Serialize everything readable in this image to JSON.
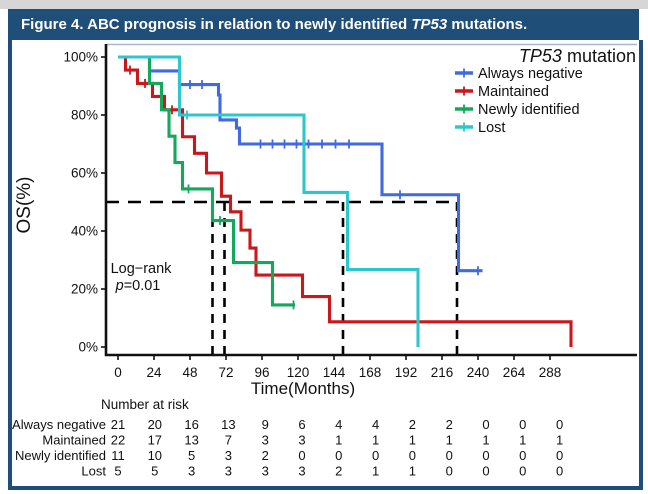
{
  "figure": {
    "title_prefix": "Figure 4. ABC prognosis in relation to newly identified ",
    "title_gene": "TP53",
    "title_suffix": " mutations.",
    "frame_color": "#1f4e79"
  },
  "chart_data": {
    "type": "line",
    "subtype": "kaplan-meier-step",
    "title": "",
    "xlabel": "Time(Months)",
    "ylabel": "OS(%)",
    "xlim": [
      0,
      346
    ],
    "ylim": [
      0,
      100
    ],
    "grid": false,
    "x_ticks": [
      0,
      24,
      48,
      72,
      96,
      120,
      144,
      168,
      192,
      216,
      240,
      264,
      288
    ],
    "y_tick_values": [
      0,
      20,
      40,
      60,
      80,
      100
    ],
    "y_tick_labels": [
      "0%",
      "20%",
      "40%",
      "60%",
      "80%",
      "100%"
    ],
    "legend": {
      "position": "top-right",
      "title_italic": "TP53",
      "title_rest": " mutation"
    },
    "annotation": {
      "line1": "Log−rank",
      "p_italic": "p",
      "p_rest": "=0.01"
    },
    "reference_line": {
      "os_pct": 50
    },
    "median_months": [
      63,
      71,
      150,
      226
    ],
    "series": [
      {
        "name": "Always negative",
        "color": "#4169e1",
        "steps": [
          [
            0,
            100
          ],
          [
            21,
            95.2
          ],
          [
            41,
            90.5
          ],
          [
            67,
            86.9
          ],
          [
            68,
            78.3
          ],
          [
            79,
            75.5
          ],
          [
            81,
            70
          ],
          [
            176,
            52.5
          ],
          [
            227,
            26.3
          ]
        ],
        "end_month": 243,
        "censor_marks": [
          [
            48,
            90.5
          ],
          [
            56,
            90.5
          ],
          [
            95,
            70
          ],
          [
            103,
            70
          ],
          [
            111,
            70
          ],
          [
            119,
            70
          ],
          [
            127,
            70
          ],
          [
            136,
            70
          ],
          [
            145,
            70
          ],
          [
            154,
            70
          ],
          [
            188,
            52.5
          ],
          [
            240,
            26.3
          ]
        ]
      },
      {
        "name": "Maintained",
        "color": "#c9171c",
        "steps": [
          [
            0,
            100
          ],
          [
            5,
            95.5
          ],
          [
            13,
            90.9
          ],
          [
            23,
            86.4
          ],
          [
            31,
            81.8
          ],
          [
            43,
            72.5
          ],
          [
            51,
            66.8
          ],
          [
            59,
            60
          ],
          [
            69,
            52
          ],
          [
            75,
            46.6
          ],
          [
            82,
            40.3
          ],
          [
            88,
            34.1
          ],
          [
            92,
            24.8
          ],
          [
            123,
            17.4
          ],
          [
            141,
            8.7
          ],
          [
            302,
            0
          ]
        ],
        "end_month": 302,
        "censor_marks": [
          [
            8,
            95.5
          ],
          [
            18,
            90.9
          ],
          [
            36,
            81.8
          ]
        ]
      },
      {
        "name": "Newly identified",
        "color": "#13a85c",
        "steps": [
          [
            0,
            100
          ],
          [
            21,
            90.9
          ],
          [
            29,
            81.8
          ],
          [
            34,
            72.7
          ],
          [
            38,
            63.6
          ],
          [
            43,
            54.5
          ],
          [
            63,
            43.6
          ],
          [
            77,
            29.1
          ],
          [
            103,
            14.5
          ]
        ],
        "end_month": 118,
        "censor_marks": [
          [
            47,
            54.5
          ],
          [
            68,
            43.6
          ],
          [
            117,
            14.5
          ]
        ]
      },
      {
        "name": "Lost",
        "color": "#2bc7cd",
        "steps": [
          [
            0,
            100
          ],
          [
            41,
            80
          ],
          [
            124,
            53.3
          ],
          [
            153,
            26.7
          ],
          [
            200,
            0
          ]
        ],
        "end_month": 200,
        "censor_marks": [
          [
            46,
            80
          ]
        ]
      }
    ],
    "number_at_risk": {
      "label": "Number at risk",
      "columns": [
        0,
        24,
        48,
        72,
        96,
        120,
        144,
        168,
        192,
        216,
        240,
        264,
        288
      ],
      "rows": [
        {
          "name": "Always negative",
          "color": "#4169e1",
          "values": [
            21,
            20,
            16,
            13,
            9,
            6,
            4,
            4,
            2,
            2,
            0,
            0,
            0
          ]
        },
        {
          "name": "Maintained",
          "color": "#c9171c",
          "values": [
            22,
            17,
            13,
            7,
            3,
            3,
            1,
            1,
            1,
            1,
            1,
            1,
            1
          ]
        },
        {
          "name": "Newly identified",
          "color": "#13a85c",
          "values": [
            11,
            10,
            5,
            3,
            2,
            0,
            0,
            0,
            0,
            0,
            0,
            0,
            0
          ]
        },
        {
          "name": "Lost",
          "color": "#2bc7cd",
          "values": [
            5,
            5,
            3,
            3,
            3,
            3,
            2,
            1,
            1,
            0,
            0,
            0,
            0
          ]
        }
      ]
    }
  }
}
